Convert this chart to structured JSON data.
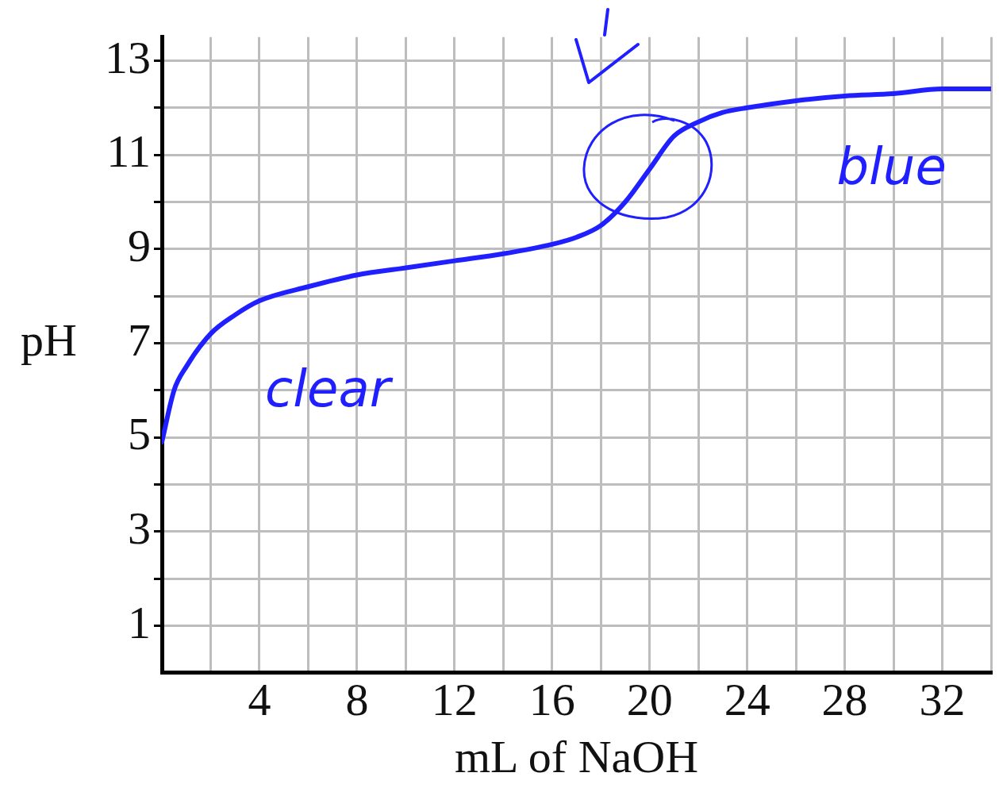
{
  "chart_data": {
    "type": "line",
    "xlabel": "mL of NaOH",
    "ylabel": "pH",
    "x": [
      0,
      0.5,
      1,
      2,
      3,
      4,
      6,
      8,
      10,
      12,
      14,
      16,
      17,
      18,
      19,
      20,
      21,
      22,
      23,
      24,
      26,
      28,
      30,
      32,
      34
    ],
    "series": [
      {
        "color": "#1f1fff",
        "values": [
          4.9,
          6.0,
          6.5,
          7.2,
          7.6,
          7.9,
          8.2,
          8.45,
          8.6,
          8.75,
          8.9,
          9.1,
          9.25,
          9.5,
          10.0,
          10.7,
          11.4,
          11.7,
          11.9,
          12.0,
          12.15,
          12.25,
          12.3,
          12.4,
          12.4
        ]
      }
    ],
    "xlim": [
      0,
      34
    ],
    "ylim": [
      0,
      13.5
    ],
    "xticks": [
      {
        "value": 2,
        "label": null
      },
      4,
      {
        "value": 6,
        "label": null
      },
      8,
      {
        "value": 10,
        "label": null
      },
      12,
      {
        "value": 14,
        "label": null
      },
      16,
      {
        "value": 18,
        "label": null
      },
      20,
      {
        "value": 22,
        "label": null
      },
      24,
      {
        "value": 26,
        "label": null
      },
      28,
      {
        "value": 30,
        "label": null
      },
      32,
      {
        "value": 34,
        "label": null
      }
    ],
    "yticks": [
      1,
      {
        "value": 2,
        "label": null
      },
      3,
      {
        "value": 4,
        "label": null
      },
      5,
      {
        "value": 6,
        "label": null
      },
      7,
      {
        "value": 8,
        "label": null
      },
      9,
      {
        "value": 10,
        "label": null
      },
      11,
      {
        "value": 12,
        "label": null
      },
      13
    ],
    "grid": true,
    "legend": false,
    "marker": "none",
    "line_style": "solid",
    "annotations": [
      "clear",
      "blue"
    ]
  }
}
